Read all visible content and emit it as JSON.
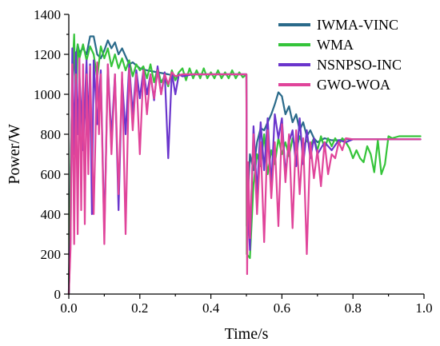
{
  "chart_data": {
    "type": "line",
    "xlabel": "Time/s",
    "ylabel": "Power/W",
    "xlim": [
      0.0,
      1.0
    ],
    "ylim": [
      0,
      1400
    ],
    "xticks": [
      "0.0",
      "0.2",
      "0.4",
      "0.6",
      "0.8",
      "1.0"
    ],
    "yticks": [
      "0",
      "200",
      "400",
      "600",
      "800",
      "1000",
      "1200",
      "1400"
    ],
    "legend_position": "top-right",
    "series": [
      {
        "name": "IWMA-VINC",
        "color": "#2a6a8a",
        "points": [
          [
            0.0,
            0
          ],
          [
            0.005,
            620
          ],
          [
            0.01,
            1050
          ],
          [
            0.015,
            1220
          ],
          [
            0.02,
            1180
          ],
          [
            0.025,
            1250
          ],
          [
            0.03,
            1210
          ],
          [
            0.04,
            1230
          ],
          [
            0.05,
            1200
          ],
          [
            0.06,
            1290
          ],
          [
            0.07,
            1290
          ],
          [
            0.08,
            1200
          ],
          [
            0.09,
            1180
          ],
          [
            0.1,
            1220
          ],
          [
            0.11,
            1270
          ],
          [
            0.12,
            1230
          ],
          [
            0.13,
            1260
          ],
          [
            0.14,
            1200
          ],
          [
            0.15,
            1230
          ],
          [
            0.16,
            1190
          ],
          [
            0.17,
            1150
          ],
          [
            0.18,
            1160
          ],
          [
            0.2,
            1130
          ],
          [
            0.22,
            1120
          ],
          [
            0.25,
            1110
          ],
          [
            0.28,
            1100
          ],
          [
            0.3,
            1090
          ],
          [
            0.32,
            1100
          ],
          [
            0.35,
            1100
          ],
          [
            0.4,
            1100
          ],
          [
            0.45,
            1100
          ],
          [
            0.5,
            1100
          ],
          [
            0.501,
            340
          ],
          [
            0.51,
            700
          ],
          [
            0.52,
            620
          ],
          [
            0.53,
            760
          ],
          [
            0.54,
            830
          ],
          [
            0.55,
            820
          ],
          [
            0.56,
            860
          ],
          [
            0.57,
            900
          ],
          [
            0.58,
            950
          ],
          [
            0.59,
            1010
          ],
          [
            0.6,
            990
          ],
          [
            0.61,
            900
          ],
          [
            0.62,
            940
          ],
          [
            0.63,
            860
          ],
          [
            0.64,
            900
          ],
          [
            0.65,
            820
          ],
          [
            0.66,
            860
          ],
          [
            0.67,
            790
          ],
          [
            0.68,
            820
          ],
          [
            0.69,
            780
          ],
          [
            0.7,
            760
          ],
          [
            0.72,
            780
          ],
          [
            0.74,
            770
          ],
          [
            0.76,
            770
          ],
          [
            0.78,
            775
          ],
          [
            0.8,
            775
          ],
          [
            0.85,
            775
          ],
          [
            0.9,
            775
          ],
          [
            0.95,
            775
          ],
          [
            0.99,
            775
          ]
        ]
      },
      {
        "name": "WMA",
        "color": "#35c43a",
        "points": [
          [
            0.0,
            0
          ],
          [
            0.005,
            560
          ],
          [
            0.01,
            1100
          ],
          [
            0.015,
            1300
          ],
          [
            0.02,
            900
          ],
          [
            0.025,
            1250
          ],
          [
            0.03,
            1180
          ],
          [
            0.04,
            1250
          ],
          [
            0.05,
            1170
          ],
          [
            0.06,
            1240
          ],
          [
            0.07,
            1200
          ],
          [
            0.08,
            1080
          ],
          [
            0.09,
            1240
          ],
          [
            0.1,
            1180
          ],
          [
            0.11,
            1230
          ],
          [
            0.12,
            1140
          ],
          [
            0.13,
            1200
          ],
          [
            0.14,
            1130
          ],
          [
            0.15,
            1180
          ],
          [
            0.16,
            1120
          ],
          [
            0.17,
            1170
          ],
          [
            0.18,
            1090
          ],
          [
            0.19,
            1150
          ],
          [
            0.2,
            1120
          ],
          [
            0.21,
            1140
          ],
          [
            0.22,
            1080
          ],
          [
            0.23,
            1150
          ],
          [
            0.24,
            1060
          ],
          [
            0.25,
            1130
          ],
          [
            0.26,
            1060
          ],
          [
            0.27,
            1090
          ],
          [
            0.28,
            1040
          ],
          [
            0.29,
            1120
          ],
          [
            0.3,
            1070
          ],
          [
            0.31,
            1110
          ],
          [
            0.32,
            1130
          ],
          [
            0.33,
            1070
          ],
          [
            0.34,
            1130
          ],
          [
            0.35,
            1080
          ],
          [
            0.36,
            1120
          ],
          [
            0.37,
            1080
          ],
          [
            0.38,
            1130
          ],
          [
            0.39,
            1080
          ],
          [
            0.4,
            1110
          ],
          [
            0.41,
            1080
          ],
          [
            0.42,
            1120
          ],
          [
            0.43,
            1080
          ],
          [
            0.44,
            1110
          ],
          [
            0.45,
            1080
          ],
          [
            0.46,
            1120
          ],
          [
            0.47,
            1080
          ],
          [
            0.48,
            1110
          ],
          [
            0.49,
            1085
          ],
          [
            0.5,
            1100
          ],
          [
            0.501,
            200
          ],
          [
            0.51,
            180
          ],
          [
            0.52,
            550
          ],
          [
            0.53,
            700
          ],
          [
            0.54,
            640
          ],
          [
            0.55,
            800
          ],
          [
            0.56,
            600
          ],
          [
            0.57,
            720
          ],
          [
            0.58,
            650
          ],
          [
            0.59,
            780
          ],
          [
            0.6,
            700
          ],
          [
            0.61,
            760
          ],
          [
            0.62,
            690
          ],
          [
            0.63,
            780
          ],
          [
            0.64,
            720
          ],
          [
            0.65,
            790
          ],
          [
            0.66,
            740
          ],
          [
            0.67,
            770
          ],
          [
            0.68,
            740
          ],
          [
            0.69,
            780
          ],
          [
            0.7,
            720
          ],
          [
            0.71,
            790
          ],
          [
            0.72,
            730
          ],
          [
            0.73,
            780
          ],
          [
            0.74,
            740
          ],
          [
            0.75,
            780
          ],
          [
            0.76,
            750
          ],
          [
            0.77,
            780
          ],
          [
            0.78,
            760
          ],
          [
            0.79,
            730
          ],
          [
            0.8,
            680
          ],
          [
            0.81,
            720
          ],
          [
            0.82,
            680
          ],
          [
            0.83,
            660
          ],
          [
            0.84,
            740
          ],
          [
            0.85,
            700
          ],
          [
            0.86,
            610
          ],
          [
            0.87,
            770
          ],
          [
            0.88,
            600
          ],
          [
            0.89,
            650
          ],
          [
            0.9,
            790
          ],
          [
            0.91,
            780
          ],
          [
            0.93,
            790
          ],
          [
            0.95,
            790
          ],
          [
            0.97,
            790
          ],
          [
            0.99,
            790
          ]
        ]
      },
      {
        "name": "NSNPSO-INC",
        "color": "#6a35cc",
        "points": [
          [
            0.0,
            0
          ],
          [
            0.005,
            280
          ],
          [
            0.01,
            1230
          ],
          [
            0.015,
            700
          ],
          [
            0.02,
            1210
          ],
          [
            0.025,
            800
          ],
          [
            0.03,
            1100
          ],
          [
            0.04,
            720
          ],
          [
            0.05,
            1170
          ],
          [
            0.055,
            820
          ],
          [
            0.06,
            1150
          ],
          [
            0.065,
            400
          ],
          [
            0.07,
            1170
          ],
          [
            0.08,
            850
          ],
          [
            0.09,
            1120
          ],
          [
            0.1,
            300
          ],
          [
            0.11,
            1150
          ],
          [
            0.12,
            780
          ],
          [
            0.13,
            1100
          ],
          [
            0.14,
            420
          ],
          [
            0.15,
            1080
          ],
          [
            0.16,
            800
          ],
          [
            0.17,
            1150
          ],
          [
            0.18,
            900
          ],
          [
            0.19,
            1120
          ],
          [
            0.2,
            980
          ],
          [
            0.21,
            1120
          ],
          [
            0.22,
            1000
          ],
          [
            0.23,
            1100
          ],
          [
            0.24,
            970
          ],
          [
            0.25,
            1140
          ],
          [
            0.26,
            1000
          ],
          [
            0.27,
            1110
          ],
          [
            0.28,
            680
          ],
          [
            0.29,
            1110
          ],
          [
            0.3,
            1000
          ],
          [
            0.31,
            1100
          ],
          [
            0.32,
            1090
          ],
          [
            0.35,
            1100
          ],
          [
            0.4,
            1100
          ],
          [
            0.45,
            1100
          ],
          [
            0.5,
            1100
          ],
          [
            0.501,
            600
          ],
          [
            0.51,
            220
          ],
          [
            0.52,
            840
          ],
          [
            0.53,
            500
          ],
          [
            0.54,
            860
          ],
          [
            0.55,
            620
          ],
          [
            0.56,
            880
          ],
          [
            0.57,
            540
          ],
          [
            0.58,
            900
          ],
          [
            0.59,
            780
          ],
          [
            0.6,
            880
          ],
          [
            0.61,
            600
          ],
          [
            0.62,
            760
          ],
          [
            0.63,
            820
          ],
          [
            0.64,
            640
          ],
          [
            0.65,
            880
          ],
          [
            0.66,
            650
          ],
          [
            0.67,
            820
          ],
          [
            0.68,
            680
          ],
          [
            0.69,
            780
          ],
          [
            0.7,
            700
          ],
          [
            0.72,
            760
          ],
          [
            0.74,
            720
          ],
          [
            0.76,
            770
          ],
          [
            0.78,
            760
          ],
          [
            0.8,
            775
          ],
          [
            0.85,
            775
          ],
          [
            0.9,
            775
          ],
          [
            0.95,
            775
          ],
          [
            0.99,
            775
          ]
        ]
      },
      {
        "name": "GWO-WOA",
        "color": "#e0449a",
        "points": [
          [
            0.0,
            0
          ],
          [
            0.005,
            230
          ],
          [
            0.01,
            1150
          ],
          [
            0.015,
            250
          ],
          [
            0.02,
            1100
          ],
          [
            0.025,
            300
          ],
          [
            0.03,
            1180
          ],
          [
            0.035,
            420
          ],
          [
            0.04,
            1150
          ],
          [
            0.045,
            350
          ],
          [
            0.05,
            1100
          ],
          [
            0.055,
            600
          ],
          [
            0.06,
            1140
          ],
          [
            0.07,
            400
          ],
          [
            0.08,
            1160
          ],
          [
            0.085,
            800
          ],
          [
            0.09,
            1100
          ],
          [
            0.1,
            250
          ],
          [
            0.11,
            1150
          ],
          [
            0.12,
            700
          ],
          [
            0.13,
            1100
          ],
          [
            0.14,
            500
          ],
          [
            0.15,
            1110
          ],
          [
            0.16,
            300
          ],
          [
            0.17,
            1130
          ],
          [
            0.18,
            820
          ],
          [
            0.19,
            1100
          ],
          [
            0.2,
            700
          ],
          [
            0.21,
            1120
          ],
          [
            0.22,
            900
          ],
          [
            0.23,
            1100
          ],
          [
            0.24,
            980
          ],
          [
            0.25,
            1120
          ],
          [
            0.26,
            1000
          ],
          [
            0.27,
            1100
          ],
          [
            0.28,
            1050
          ],
          [
            0.29,
            1110
          ],
          [
            0.3,
            1090
          ],
          [
            0.32,
            1100
          ],
          [
            0.35,
            1100
          ],
          [
            0.4,
            1100
          ],
          [
            0.45,
            1100
          ],
          [
            0.5,
            1100
          ],
          [
            0.502,
            100
          ],
          [
            0.505,
            660
          ],
          [
            0.51,
            280
          ],
          [
            0.52,
            800
          ],
          [
            0.53,
            400
          ],
          [
            0.54,
            760
          ],
          [
            0.55,
            260
          ],
          [
            0.56,
            820
          ],
          [
            0.57,
            480
          ],
          [
            0.58,
            760
          ],
          [
            0.59,
            340
          ],
          [
            0.6,
            850
          ],
          [
            0.61,
            560
          ],
          [
            0.62,
            800
          ],
          [
            0.63,
            330
          ],
          [
            0.64,
            820
          ],
          [
            0.65,
            500
          ],
          [
            0.66,
            780
          ],
          [
            0.67,
            200
          ],
          [
            0.68,
            760
          ],
          [
            0.69,
            580
          ],
          [
            0.7,
            720
          ],
          [
            0.71,
            540
          ],
          [
            0.72,
            760
          ],
          [
            0.73,
            600
          ],
          [
            0.74,
            700
          ],
          [
            0.75,
            680
          ],
          [
            0.76,
            760
          ],
          [
            0.77,
            720
          ],
          [
            0.78,
            780
          ],
          [
            0.8,
            775
          ],
          [
            0.85,
            775
          ],
          [
            0.9,
            775
          ],
          [
            0.95,
            775
          ],
          [
            0.99,
            775
          ]
        ]
      }
    ]
  }
}
